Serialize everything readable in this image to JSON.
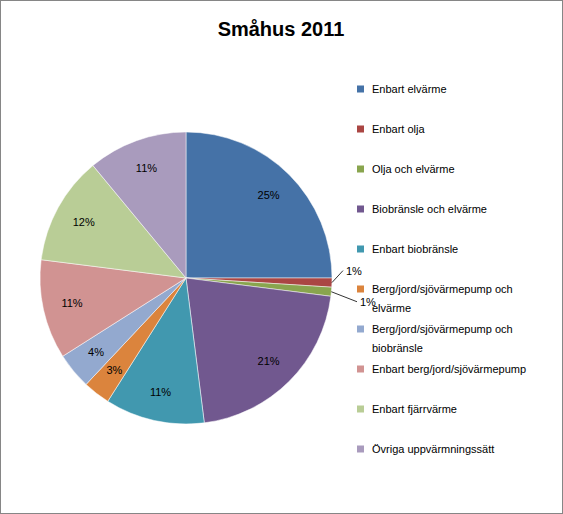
{
  "chart_data": {
    "type": "pie",
    "title": "Småhus 2011",
    "categories": [
      "Enbart elvärme",
      "Enbart olja",
      "Olja och elvärme",
      "Biobränsle och elvärme",
      "Enbart biobränsle",
      "Berg/jord/sjövärmepump och elvärme",
      "Berg/jord/sjövärmepump och biobränsle",
      "Enbart berg/jord/sjövärmepump",
      "Enbart fjärrvärme",
      "Övriga uppvärmningssätt"
    ],
    "values": [
      25,
      1,
      1,
      21,
      11,
      3,
      4,
      11,
      12,
      11
    ],
    "value_labels": [
      "25%",
      "1%",
      "1%",
      "21%",
      "11%",
      "3%",
      "4%",
      "11%",
      "12%",
      "11%"
    ],
    "colors": [
      "#4572A7",
      "#AA4643",
      "#89A54E",
      "#71588F",
      "#4198AF",
      "#DB843D",
      "#93A9CF",
      "#D19392",
      "#B9CD96",
      "#A99BBD"
    ],
    "data_labels": true,
    "legend": "right"
  }
}
